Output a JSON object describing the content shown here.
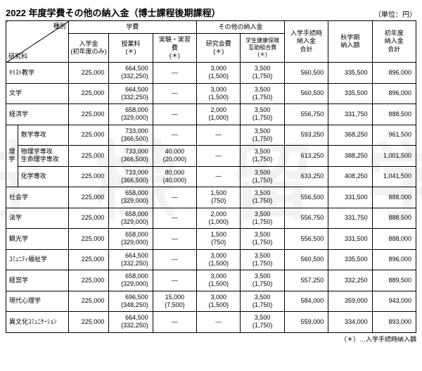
{
  "title": "2022 年度学費その他の納入金（博士課程後期課程）",
  "unit": "（単位：円）",
  "note": "（＊）…入学手続時納入額",
  "header": {
    "diag_top": "種別",
    "diag_bot": "研究科",
    "gakuhi": "学費",
    "sonota": "その他の納入金",
    "nyugaku": "入学金\n(初年度のみ)",
    "jugyo": "授業料\n(＊)",
    "jikken": "実験・実習\n費\n(＊)",
    "kenkyu": "研究会費\n(＊)",
    "gakusei": "学生健康保険\n互助組合費\n(＊)",
    "tetsuzuki": "入学手続時\n納入金\n合計",
    "aki": "秋学期\n納入額",
    "shonendo": "初年度\n納入金\n合計"
  },
  "ri_label": "理\n学",
  "rows": [
    {
      "name": "ｷﾘｽﾄ教学",
      "nyugaku": "225,000",
      "jugyo": "664,500\n(332,250)",
      "jikken": "—",
      "kenkyu": "3,000\n(1,500)",
      "gakusei": "3,500\n(1,750)",
      "tet": "560,500",
      "aki": "335,500",
      "sho": "896,000"
    },
    {
      "name": "文学",
      "nyugaku": "225,000",
      "jugyo": "664,500\n(332,250)",
      "jikken": "—",
      "kenkyu": "3,000\n(1,500)",
      "gakusei": "3,500\n(1,750)",
      "tet": "560,500",
      "aki": "335,500",
      "sho": "896,000"
    },
    {
      "name": "経済学",
      "nyugaku": "225,000",
      "jugyo": "658,000\n(329,000)",
      "jikken": "—",
      "kenkyu": "2,000\n(1,000)",
      "gakusei": "3,500\n(1,750)",
      "tet": "556,750",
      "aki": "331,750",
      "sho": "888,500"
    },
    {
      "name": "数学専攻",
      "nyugaku": "225,000",
      "jugyo": "733,000\n(366,500)",
      "jikken": "—",
      "kenkyu": "—",
      "gakusei": "3,500\n(1,750)",
      "tet": "593,250",
      "aki": "368,250",
      "sho": "961,500"
    },
    {
      "name": "物理学専攻\n生命理学専攻",
      "nyugaku": "225,000",
      "jugyo": "733,000\n(366,500)",
      "jikken": "40,000\n(20,000)",
      "kenkyu": "—",
      "gakusei": "3,500\n(1,750)",
      "tet": "613,250",
      "aki": "388,250",
      "sho": "1,001,500"
    },
    {
      "name": "化学専攻",
      "nyugaku": "225,000",
      "jugyo": "733,000\n(366,500)",
      "jikken": "80,000\n(40,000)",
      "kenkyu": "—",
      "gakusei": "3,500\n(1,750)",
      "tet": "633,250",
      "aki": "408,250",
      "sho": "1,041,500"
    },
    {
      "name": "社会学",
      "nyugaku": "225,000",
      "jugyo": "658,000\n(329,000)",
      "jikken": "—",
      "kenkyu": "1,500\n(750)",
      "gakusei": "3,500\n(1,750)",
      "tet": "556,500",
      "aki": "331,500",
      "sho": "888,000"
    },
    {
      "name": "法学",
      "nyugaku": "225,000",
      "jugyo": "658,000\n(329,000)",
      "jikken": "—",
      "kenkyu": "2,000\n(1,000)",
      "gakusei": "3,500\n(1,750)",
      "tet": "556,750",
      "aki": "331,750",
      "sho": "888,500"
    },
    {
      "name": "観光学",
      "nyugaku": "225,000",
      "jugyo": "658,000\n(329,000)",
      "jikken": "—",
      "kenkyu": "1,500\n(750)",
      "gakusei": "3,500\n(1,750)",
      "tet": "556,500",
      "aki": "331,500",
      "sho": "888,000"
    },
    {
      "name": "ｺﾐｭﾆﾃｨ福祉学",
      "nyugaku": "225,000",
      "jugyo": "664,500\n(332,250)",
      "jikken": "—",
      "kenkyu": "3,000\n(1,500)",
      "gakusei": "3,500\n(1,750)",
      "tet": "560,500",
      "aki": "335,500",
      "sho": "896,000"
    },
    {
      "name": "経営学",
      "nyugaku": "225,000",
      "jugyo": "658,000\n(329,000)",
      "jikken": "—",
      "kenkyu": "3,000\n(1,500)",
      "gakusei": "3,500\n(1,750)",
      "tet": "557,250",
      "aki": "332,250",
      "sho": "889,500"
    },
    {
      "name": "現代心理学",
      "nyugaku": "225,000",
      "jugyo": "696,500\n(348,250)",
      "jikken": "15,000\n(7,500)",
      "kenkyu": "3,000\n(1,500)",
      "gakusei": "3,500\n(1,750)",
      "tet": "584,000",
      "aki": "359,000",
      "sho": "943,000"
    },
    {
      "name": "異文化ｺﾐｭﾆｹｰｼｮﾝ",
      "nyugaku": "225,000",
      "jugyo": "664,500\n(332,250)",
      "jikken": "—",
      "kenkyu": "—",
      "gakusei": "3,500\n(1,750)",
      "tet": "559,000",
      "aki": "334,000",
      "sho": "893,000"
    }
  ]
}
